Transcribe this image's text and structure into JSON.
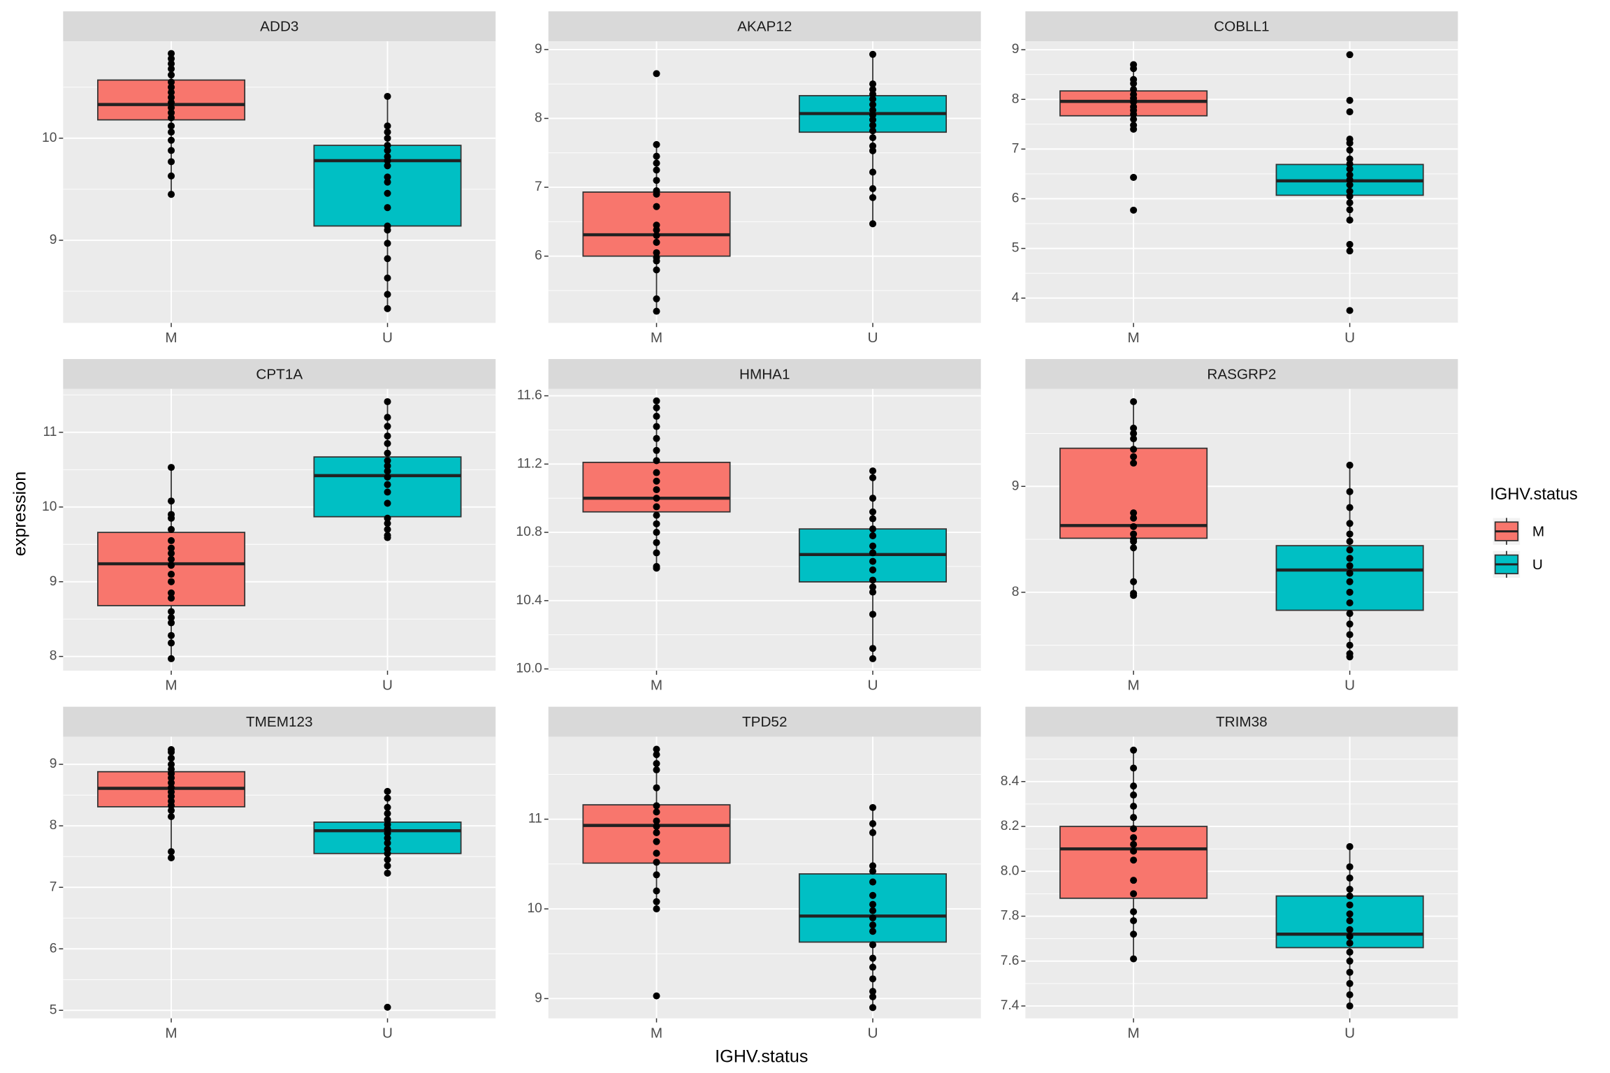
{
  "chart_data": [
    {
      "type": "box",
      "title": "ADD3",
      "categories": [
        "M",
        "U"
      ],
      "ylim": [
        8.19,
        10.95
      ],
      "yticks": [
        9,
        10
      ],
      "grid": true,
      "series": [
        {
          "name": "M",
          "color": "#F8766D",
          "whisker_low": 9.45,
          "q1": 10.18,
          "median": 10.33,
          "q3": 10.57,
          "whisker_high": 10.83,
          "points": [
            10.83,
            10.78,
            10.73,
            10.68,
            10.62,
            10.55,
            10.5,
            10.45,
            10.4,
            10.35,
            10.3,
            10.25,
            10.2,
            10.12,
            10.06,
            9.98,
            9.88,
            9.77,
            9.63,
            9.45
          ]
        },
        {
          "name": "U",
          "color": "#00BFC4",
          "whisker_low": 8.33,
          "q1": 9.14,
          "median": 9.78,
          "q3": 9.93,
          "whisker_high": 10.41,
          "points": [
            10.41,
            10.12,
            10.06,
            10.0,
            9.93,
            9.88,
            9.82,
            9.78,
            9.73,
            9.62,
            9.57,
            9.46,
            9.32,
            9.14,
            9.1,
            8.97,
            8.82,
            8.63,
            8.47,
            8.33
          ]
        }
      ]
    },
    {
      "type": "box",
      "title": "AKAP12",
      "categories": [
        "M",
        "U"
      ],
      "ylim": [
        5.03,
        9.12
      ],
      "yticks": [
        6,
        7,
        8,
        9
      ],
      "grid": true,
      "series": [
        {
          "name": "M",
          "color": "#F8766D",
          "whisker_low": 5.2,
          "q1": 6.0,
          "median": 6.31,
          "q3": 6.93,
          "whisker_high": 7.63,
          "points": [
            8.65,
            7.62,
            7.45,
            7.35,
            7.25,
            7.1,
            6.95,
            6.9,
            6.72,
            6.45,
            6.38,
            6.3,
            6.2,
            6.05,
            5.98,
            5.93,
            5.8,
            5.38,
            5.2
          ]
        },
        {
          "name": "U",
          "color": "#00BFC4",
          "whisker_low": 6.47,
          "q1": 7.8,
          "median": 8.07,
          "q3": 8.33,
          "whisker_high": 8.94,
          "points": [
            8.93,
            8.5,
            8.42,
            8.35,
            8.28,
            8.2,
            8.12,
            8.05,
            7.98,
            7.9,
            7.82,
            7.72,
            7.6,
            7.53,
            7.22,
            6.98,
            6.85,
            6.47
          ]
        }
      ]
    },
    {
      "type": "box",
      "title": "COBLL1",
      "categories": [
        "M",
        "U"
      ],
      "ylim": [
        3.5,
        9.17
      ],
      "yticks": [
        4,
        5,
        6,
        7,
        8,
        9
      ],
      "grid": true,
      "series": [
        {
          "name": "M",
          "color": "#F8766D",
          "whisker_low": 7.4,
          "q1": 7.67,
          "median": 7.96,
          "q3": 8.17,
          "whisker_high": 8.7,
          "points": [
            8.7,
            8.62,
            8.4,
            8.32,
            8.2,
            8.1,
            8.02,
            7.95,
            7.85,
            7.78,
            7.7,
            7.6,
            7.48,
            7.4,
            6.43,
            5.77
          ]
        },
        {
          "name": "U",
          "color": "#00BFC4",
          "whisker_low": 5.57,
          "q1": 6.07,
          "median": 6.36,
          "q3": 6.69,
          "whisker_high": 7.2,
          "points": [
            8.9,
            7.98,
            7.75,
            7.2,
            7.12,
            6.98,
            6.8,
            6.7,
            6.6,
            6.48,
            6.38,
            6.28,
            6.15,
            6.05,
            5.92,
            5.78,
            5.57,
            5.08,
            4.95,
            3.75
          ]
        }
      ]
    },
    {
      "type": "box",
      "title": "CPT1A",
      "categories": [
        "M",
        "U"
      ],
      "ylim": [
        7.81,
        11.58
      ],
      "yticks": [
        8,
        9,
        10,
        11
      ],
      "grid": true,
      "series": [
        {
          "name": "M",
          "color": "#F8766D",
          "whisker_low": 7.97,
          "q1": 8.68,
          "median": 9.24,
          "q3": 9.66,
          "whisker_high": 10.53,
          "points": [
            10.53,
            10.08,
            9.9,
            9.85,
            9.7,
            9.55,
            9.45,
            9.38,
            9.3,
            9.22,
            9.1,
            9.0,
            8.85,
            8.78,
            8.6,
            8.52,
            8.45,
            8.28,
            8.18,
            7.97
          ]
        },
        {
          "name": "U",
          "color": "#00BFC4",
          "whisker_low": 9.59,
          "q1": 9.87,
          "median": 10.42,
          "q3": 10.67,
          "whisker_high": 11.41,
          "points": [
            11.41,
            11.2,
            11.08,
            10.95,
            10.85,
            10.72,
            10.62,
            10.55,
            10.48,
            10.4,
            10.3,
            10.2,
            10.05,
            9.85,
            9.78,
            9.7,
            9.62,
            9.59
          ]
        }
      ]
    },
    {
      "type": "box",
      "title": "HMHA1",
      "categories": [
        "M",
        "U"
      ],
      "ylim": [
        9.99,
        11.64
      ],
      "yticks": [
        {
          "value": 10,
          "label": "10.0"
        },
        10.4,
        10.8,
        11.2,
        11.6
      ],
      "grid": true,
      "series": [
        {
          "name": "M",
          "color": "#F8766D",
          "whisker_low": 10.59,
          "q1": 10.92,
          "median": 11.0,
          "q3": 11.21,
          "whisker_high": 11.57,
          "points": [
            11.57,
            11.53,
            11.48,
            11.42,
            11.35,
            11.28,
            11.22,
            11.15,
            11.1,
            11.05,
            11.0,
            10.95,
            10.9,
            10.85,
            10.8,
            10.74,
            10.68,
            10.6,
            10.59
          ]
        },
        {
          "name": "U",
          "color": "#00BFC4",
          "whisker_low": 10.06,
          "q1": 10.51,
          "median": 10.67,
          "q3": 10.82,
          "whisker_high": 11.16,
          "points": [
            11.16,
            11.12,
            11.0,
            10.92,
            10.88,
            10.82,
            10.78,
            10.72,
            10.68,
            10.63,
            10.58,
            10.52,
            10.48,
            10.45,
            10.32,
            10.12,
            10.06
          ]
        }
      ]
    },
    {
      "type": "box",
      "title": "RASGRP2",
      "categories": [
        "M",
        "U"
      ],
      "ylim": [
        7.26,
        9.92
      ],
      "yticks": [
        8,
        9
      ],
      "grid": true,
      "series": [
        {
          "name": "M",
          "color": "#F8766D",
          "whisker_low": 7.97,
          "q1": 8.51,
          "median": 8.63,
          "q3": 9.36,
          "whisker_high": 9.8,
          "points": [
            9.8,
            9.55,
            9.5,
            9.45,
            9.35,
            9.28,
            9.22,
            8.75,
            8.7,
            8.62,
            8.55,
            8.5,
            8.48,
            8.42,
            8.1,
            7.99,
            7.97
          ]
        },
        {
          "name": "U",
          "color": "#00BFC4",
          "whisker_low": 7.39,
          "q1": 7.83,
          "median": 8.21,
          "q3": 8.44,
          "whisker_high": 9.2,
          "points": [
            9.2,
            8.95,
            8.8,
            8.65,
            8.55,
            8.48,
            8.4,
            8.32,
            8.25,
            8.18,
            8.1,
            8.0,
            7.9,
            7.8,
            7.7,
            7.6,
            7.5,
            7.42,
            7.39
          ]
        }
      ]
    },
    {
      "type": "box",
      "title": "TMEM123",
      "categories": [
        "M",
        "U"
      ],
      "ylim": [
        4.87,
        9.45
      ],
      "yticks": [
        5,
        6,
        7,
        8,
        9
      ],
      "grid": true,
      "series": [
        {
          "name": "M",
          "color": "#F8766D",
          "whisker_low": 7.48,
          "q1": 8.31,
          "median": 8.61,
          "q3": 8.88,
          "whisker_high": 9.24,
          "points": [
            9.24,
            9.2,
            9.1,
            9.0,
            8.92,
            8.85,
            8.78,
            8.7,
            8.62,
            8.55,
            8.48,
            8.4,
            8.33,
            8.25,
            8.15,
            7.58,
            7.48
          ]
        },
        {
          "name": "U",
          "color": "#00BFC4",
          "whisker_low": 7.23,
          "q1": 7.55,
          "median": 7.92,
          "q3": 8.06,
          "whisker_high": 8.56,
          "points": [
            8.56,
            8.45,
            8.3,
            8.2,
            8.1,
            8.02,
            7.95,
            7.88,
            7.8,
            7.72,
            7.62,
            7.55,
            7.45,
            7.35,
            7.23,
            5.05
          ]
        }
      ]
    },
    {
      "type": "box",
      "title": "TPD52",
      "categories": [
        "M",
        "U"
      ],
      "ylim": [
        8.78,
        11.92
      ],
      "yticks": [
        9,
        10,
        11
      ],
      "grid": true,
      "series": [
        {
          "name": "M",
          "color": "#F8766D",
          "whisker_low": 10.0,
          "q1": 10.51,
          "median": 10.93,
          "q3": 11.16,
          "whisker_high": 11.78,
          "points": [
            11.78,
            11.72,
            11.62,
            11.55,
            11.35,
            11.15,
            11.08,
            10.98,
            10.92,
            10.85,
            10.75,
            10.62,
            10.52,
            10.38,
            10.2,
            10.08,
            10.0,
            9.03
          ]
        },
        {
          "name": "U",
          "color": "#00BFC4",
          "whisker_low": 8.9,
          "q1": 9.63,
          "median": 9.92,
          "q3": 10.39,
          "whisker_high": 11.13,
          "points": [
            11.13,
            10.95,
            10.85,
            10.48,
            10.42,
            10.3,
            10.15,
            10.05,
            9.98,
            9.9,
            9.82,
            9.75,
            9.6,
            9.45,
            9.35,
            9.22,
            9.08,
            9.02,
            8.9
          ]
        }
      ]
    },
    {
      "type": "box",
      "title": "TRIM38",
      "categories": [
        "M",
        "U"
      ],
      "ylim": [
        7.345,
        8.6
      ],
      "yticks": [
        7.4,
        7.6,
        7.8,
        {
          "value": 8,
          "label": "8.0"
        },
        8.2,
        8.4
      ],
      "grid": true,
      "series": [
        {
          "name": "M",
          "color": "#F8766D",
          "whisker_low": 7.61,
          "q1": 7.88,
          "median": 8.1,
          "q3": 8.2,
          "whisker_high": 8.54,
          "points": [
            8.54,
            8.46,
            8.38,
            8.34,
            8.29,
            8.24,
            8.19,
            8.15,
            8.12,
            8.09,
            8.05,
            7.96,
            7.9,
            7.82,
            7.78,
            7.72,
            7.61
          ]
        },
        {
          "name": "U",
          "color": "#00BFC4",
          "whisker_low": 7.4,
          "q1": 7.66,
          "median": 7.72,
          "q3": 7.89,
          "whisker_high": 8.11,
          "points": [
            8.11,
            8.02,
            7.97,
            7.92,
            7.89,
            7.85,
            7.81,
            7.78,
            7.74,
            7.71,
            7.68,
            7.64,
            7.6,
            7.55,
            7.5,
            7.45,
            7.4
          ]
        }
      ]
    }
  ],
  "x_label": "IGHV.status",
  "y_label": "expression",
  "legend": {
    "title": "IGHV.status",
    "position": "right"
  }
}
